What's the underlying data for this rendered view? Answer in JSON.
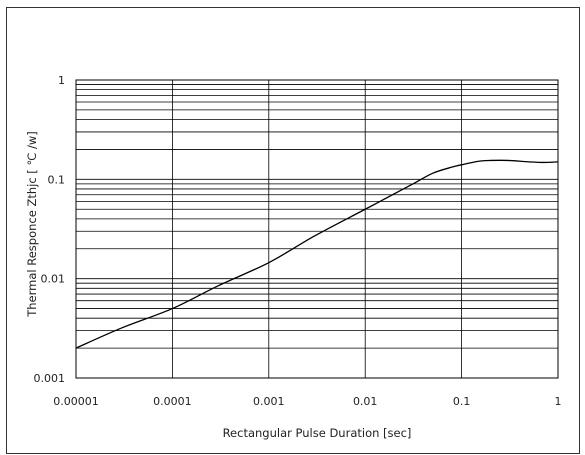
{
  "chart_data": {
    "type": "line",
    "title": "",
    "xlabel": "Rectangular Pulse Duration [sec]",
    "ylabel": "Thermal Responce  Zthjc [     ℃ /w]",
    "x_scale": "log",
    "y_scale": "log",
    "xlim": [
      1e-05,
      1
    ],
    "ylim": [
      0.001,
      1
    ],
    "x_tick_labels": [
      "0.00001",
      "0.0001",
      "0.001",
      "0.01",
      "0.1",
      "1"
    ],
    "y_tick_labels": [
      "0.001",
      "0.01",
      "0.1",
      "1"
    ],
    "grid": true,
    "series": [
      {
        "x": [
          1e-05,
          3e-05,
          0.0001,
          0.0003,
          0.001,
          0.003,
          0.01,
          0.03,
          0.05,
          0.08,
          0.1,
          0.15,
          0.2,
          0.3,
          0.5,
          0.7,
          1
        ],
        "y": [
          0.002,
          0.0032,
          0.005,
          0.0085,
          0.0145,
          0.027,
          0.05,
          0.088,
          0.115,
          0.133,
          0.14,
          0.152,
          0.155,
          0.155,
          0.15,
          0.148,
          0.15
        ]
      }
    ],
    "colors": {
      "line": "#000000",
      "grid": "#000000",
      "frame": "#333333"
    }
  }
}
